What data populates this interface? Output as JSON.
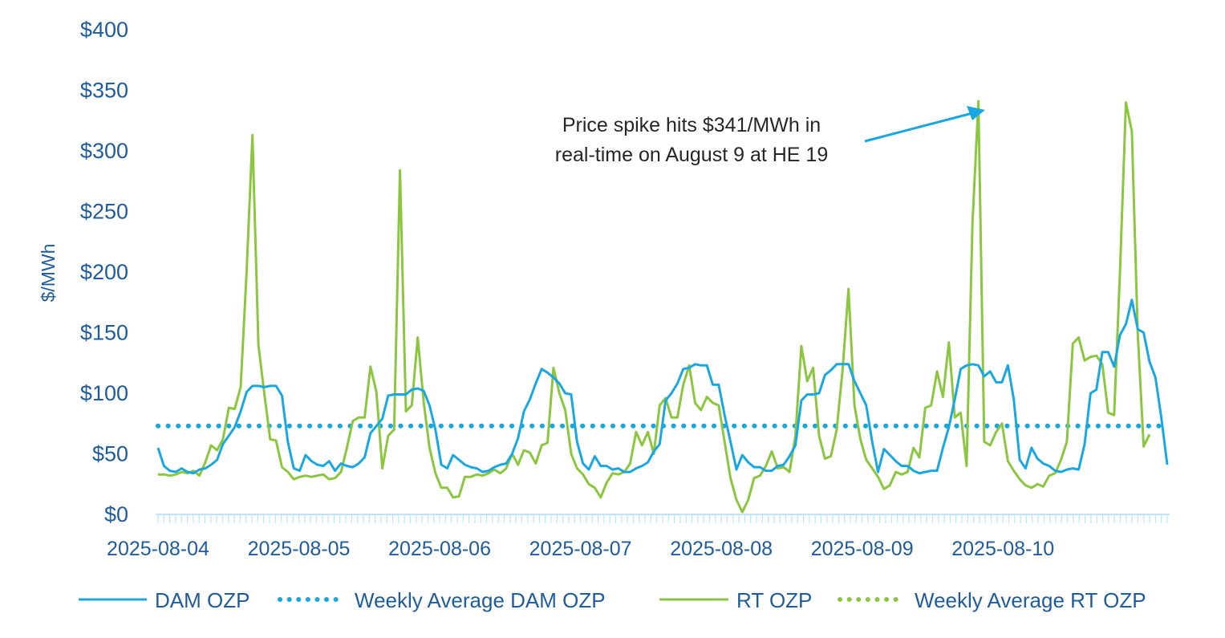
{
  "chart_data": {
    "type": "line",
    "ylabel": "$/MWh",
    "xlabel": "",
    "ylim": [
      0,
      400
    ],
    "y_ticks": [
      "$0",
      "$50",
      "$100",
      "$150",
      "$200",
      "$250",
      "$300",
      "$350",
      "$400"
    ],
    "x_ticks": [
      "2025-08-04",
      "2025-08-05",
      "2025-08-06",
      "2025-08-07",
      "2025-08-08",
      "2025-08-09",
      "2025-08-10"
    ],
    "grid": false,
    "legend_position": "bottom",
    "annotation": {
      "lines": [
        "Price spike hits $341/MWh in",
        "real-time on August 9 at HE 19"
      ]
    },
    "series": [
      {
        "name": "DAM OZP",
        "style": "solid",
        "color": "#1aa7e0",
        "values": [
          55,
          40,
          36,
          35,
          38,
          35,
          34,
          37,
          38,
          41,
          45,
          58,
          65,
          72,
          85,
          101,
          106,
          106,
          105,
          106,
          106,
          98,
          60,
          38,
          36,
          49,
          44,
          41,
          40,
          44,
          36,
          42,
          40,
          39,
          42,
          47,
          67,
          73,
          79,
          98,
          99,
          99,
          99,
          103,
          104,
          102,
          90,
          70,
          41,
          38,
          49,
          45,
          41,
          39,
          38,
          35,
          36,
          39,
          41,
          42,
          50,
          63,
          85,
          95,
          108,
          120,
          117,
          113,
          108,
          100,
          99,
          60,
          42,
          37,
          48,
          40,
          40,
          37,
          38,
          35,
          35,
          38,
          40,
          43,
          52,
          58,
          94,
          100,
          108,
          120,
          121,
          124,
          123,
          123,
          107,
          107,
          82,
          60,
          37,
          49,
          43,
          39,
          39,
          36,
          36,
          40,
          41,
          48,
          57,
          94,
          99,
          99,
          100,
          115,
          119,
          124,
          124,
          124,
          110,
          100,
          90,
          60,
          35,
          54,
          49,
          44,
          40,
          40,
          36,
          34,
          35,
          36,
          36,
          55,
          72,
          95,
          120,
          123,
          124,
          123,
          114,
          118,
          109,
          109,
          123,
          95,
          45,
          38,
          55,
          46,
          42,
          40,
          36,
          35,
          37,
          38,
          37,
          58,
          100,
          103,
          134,
          134,
          122,
          148,
          157,
          177,
          153,
          150,
          126,
          113,
          80,
          41
        ]
      },
      {
        "name": "Weekly Average DAM OZP",
        "style": "dotted",
        "color": "#1aa7e0",
        "values": [
          73
        ]
      },
      {
        "name": "RT OZP",
        "style": "solid",
        "color": "#8cc640",
        "values": [
          33,
          33,
          32,
          33,
          35,
          34,
          36,
          32,
          43,
          57,
          53,
          62,
          88,
          87,
          105,
          200,
          313,
          140,
          100,
          62,
          61,
          39,
          35,
          29,
          31,
          32,
          31,
          32,
          33,
          29,
          30,
          35,
          55,
          77,
          80,
          80,
          122,
          101,
          38,
          65,
          70,
          284,
          85,
          90,
          146,
          93,
          55,
          34,
          22,
          22,
          14,
          15,
          31,
          31,
          33,
          32,
          34,
          37,
          34,
          38,
          50,
          41,
          53,
          51,
          42,
          57,
          59,
          121,
          100,
          86,
          50,
          38,
          33,
          25,
          22,
          14,
          26,
          34,
          33,
          35,
          42,
          68,
          57,
          68,
          50,
          90,
          96,
          80,
          80,
          107,
          123,
          92,
          86,
          97,
          92,
          90,
          60,
          30,
          12,
          2,
          12,
          30,
          32,
          40,
          52,
          38,
          39,
          35,
          65,
          139,
          110,
          121,
          65,
          46,
          48,
          70,
          120,
          186,
          90,
          62,
          45,
          38,
          31,
          21,
          24,
          35,
          33,
          35,
          55,
          47,
          88,
          90,
          118,
          97,
          142,
          80,
          84,
          40,
          240,
          341,
          60,
          57,
          68,
          75,
          44,
          36,
          29,
          24,
          22,
          25,
          23,
          32,
          34,
          45,
          60,
          141,
          146,
          127,
          130,
          131,
          124,
          84,
          82,
          200,
          340,
          316,
          150,
          56,
          66
        ]
      },
      {
        "name": "Weekly Average RT OZP",
        "style": "dotted",
        "color": "#8cc640",
        "values": [
          73
        ]
      }
    ]
  },
  "colors": {
    "dam": "#1aa7e0",
    "rt": "#8cc640",
    "text": "#1f5c99",
    "axis": "#bfe4f5"
  }
}
